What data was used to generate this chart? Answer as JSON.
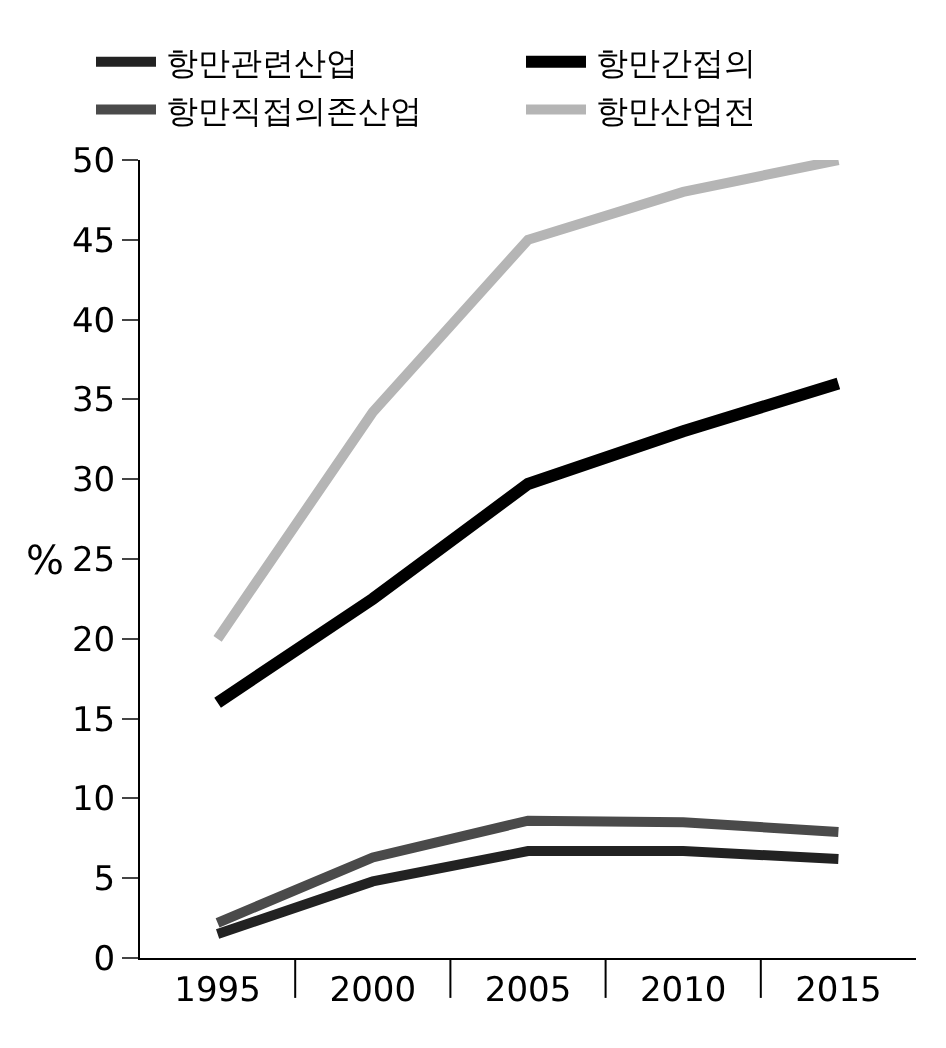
{
  "chart_data": {
    "type": "line",
    "ylabel": "%",
    "categories": [
      "1995",
      "2000",
      "2005",
      "2010",
      "2015"
    ],
    "series": [
      {
        "name": "항만관련산업",
        "color": "#222222",
        "values": [
          1.5,
          4.8,
          6.7,
          6.7,
          6.2
        ]
      },
      {
        "name": "항만간접의",
        "color": "#000000",
        "values": [
          16,
          22.5,
          29.7,
          33,
          36
        ]
      },
      {
        "name": "항만직접의존산업",
        "color": "#4a4a4a",
        "values": [
          2.2,
          6.3,
          8.6,
          8.5,
          7.9
        ]
      },
      {
        "name": "항만산업전",
        "color": "#b5b5b5",
        "values": [
          20,
          34.2,
          45,
          48,
          50
        ]
      }
    ],
    "ylim": [
      0,
      50
    ],
    "yticks": [
      0,
      5,
      10,
      15,
      20,
      25,
      30,
      35,
      40,
      45,
      50
    ],
    "legend": "top",
    "marker": "none",
    "line_style": "solid"
  }
}
